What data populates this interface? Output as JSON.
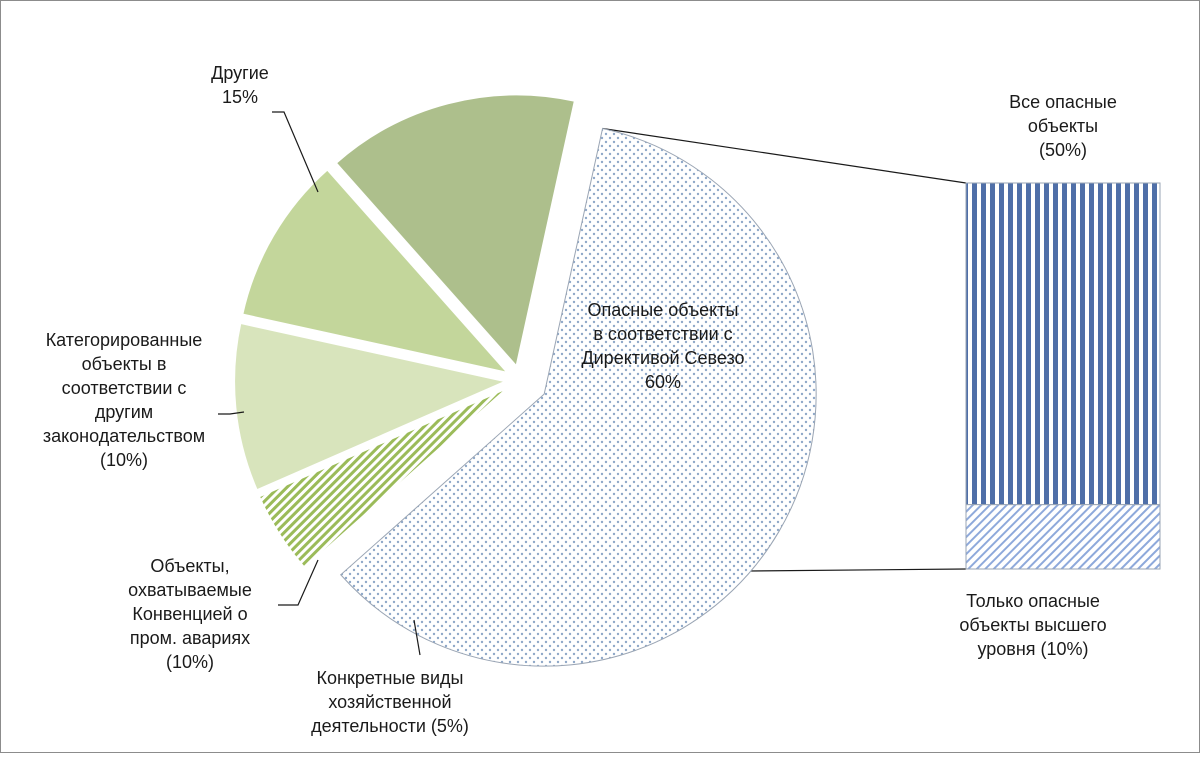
{
  "chart_data": {
    "type": "pie",
    "title": "",
    "subtitle": "",
    "slices": [
      {
        "label_lines": [
          "Опасные объекты",
          "в соответствии с",
          "Директивой Севезо"
        ],
        "percent_text": "60%",
        "value": 60,
        "pattern": "dots"
      },
      {
        "label_lines": [
          "Конкретные виды",
          "хозяйственной",
          "деятельности (5%)"
        ],
        "percent_text": "",
        "value": 5,
        "pattern": "diagonal",
        "color": "#9bbb59"
      },
      {
        "label_lines": [
          "Объекты,",
          "охватываемые",
          "Конвенцией о",
          "пром. авариях",
          "(10%)"
        ],
        "percent_text": "",
        "value": 10,
        "pattern": "solid",
        "color": "#d8e4bc"
      },
      {
        "label_lines": [
          "Категорированные",
          "объекты в",
          "соответствии с",
          "другим",
          "законодательством",
          "(10%)"
        ],
        "percent_text": "",
        "value": 10,
        "pattern": "solid",
        "color": "#c3d69b"
      },
      {
        "label_lines": [
          "Другие"
        ],
        "percent_text": "15%",
        "value": 15,
        "pattern": "solid",
        "color": "#adbf8c"
      }
    ],
    "breakdown_of": "Опасные объекты в соответствии с Директивой Севезо",
    "breakdown": [
      {
        "label_lines": [
          "Все опасные",
          "объекты",
          "(50%)"
        ],
        "value": 50,
        "pattern": "vertical-stripes",
        "color": "#4f6fa8"
      },
      {
        "label_lines": [
          "Только опасные",
          "объекты высшего",
          "уровня (10%)"
        ],
        "value": 10,
        "pattern": "diagonal",
        "color": "#8ea9db"
      }
    ]
  }
}
